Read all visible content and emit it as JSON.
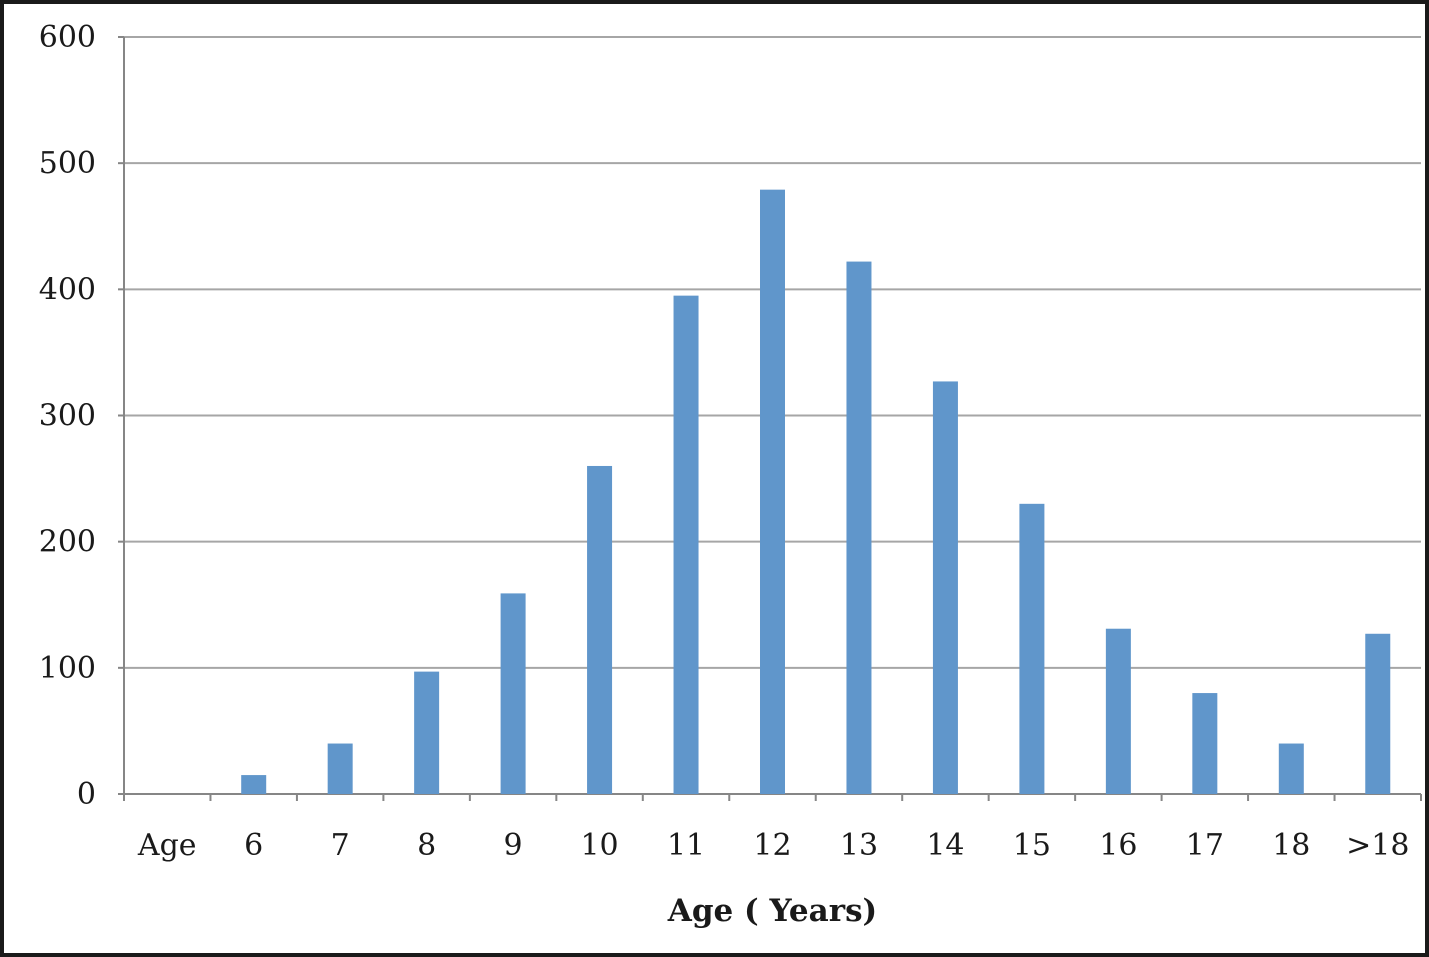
{
  "chart_data": {
    "type": "bar",
    "title": "",
    "xlabel": "Age ( Years)",
    "ylabel": "",
    "categories": [
      "Age",
      "6",
      "7",
      "8",
      "9",
      "10",
      "11",
      "12",
      "13",
      "14",
      "15",
      "16",
      "17",
      "18",
      ">18"
    ],
    "values": [
      0,
      15,
      40,
      97,
      159,
      260,
      395,
      479,
      422,
      327,
      230,
      131,
      80,
      40,
      127
    ],
    "ylim": [
      0,
      600
    ],
    "yticks": [
      0,
      100,
      200,
      300,
      400,
      500,
      600
    ],
    "grid": true,
    "legend": "none",
    "bar_color": "#6096CB",
    "grid_color": "#A6A6A6",
    "axis_color": "#868686"
  }
}
